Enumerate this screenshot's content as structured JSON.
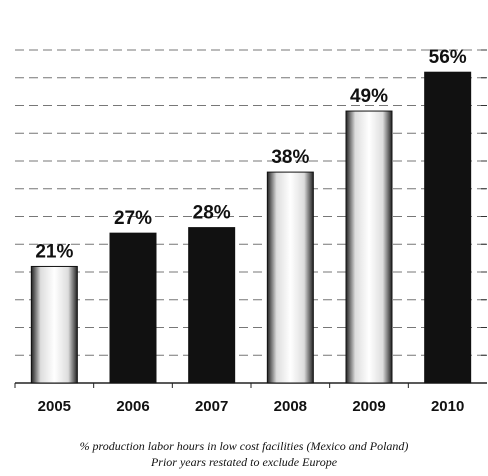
{
  "chart_data": {
    "type": "bar",
    "categories": [
      "2005",
      "2006",
      "2007",
      "2008",
      "2009",
      "2010"
    ],
    "values": [
      21,
      27,
      28,
      38,
      49,
      56
    ],
    "value_labels": [
      "21%",
      "27%",
      "28%",
      "38%",
      "49%",
      "56%"
    ],
    "colors": [
      "#f4f4f4",
      "#111111",
      "#111111",
      "#f4f4f4",
      "#f4f4f4",
      "#111111"
    ],
    "ylim": [
      0,
      60
    ],
    "yticks": [
      0,
      5,
      10,
      15,
      20,
      25,
      30,
      35,
      40,
      45,
      50,
      55,
      60
    ],
    "grid": true,
    "notes": [
      "% production labor hours in low cost facilities (Mexico and Poland)",
      "Prior years restated to exclude Europe"
    ]
  }
}
